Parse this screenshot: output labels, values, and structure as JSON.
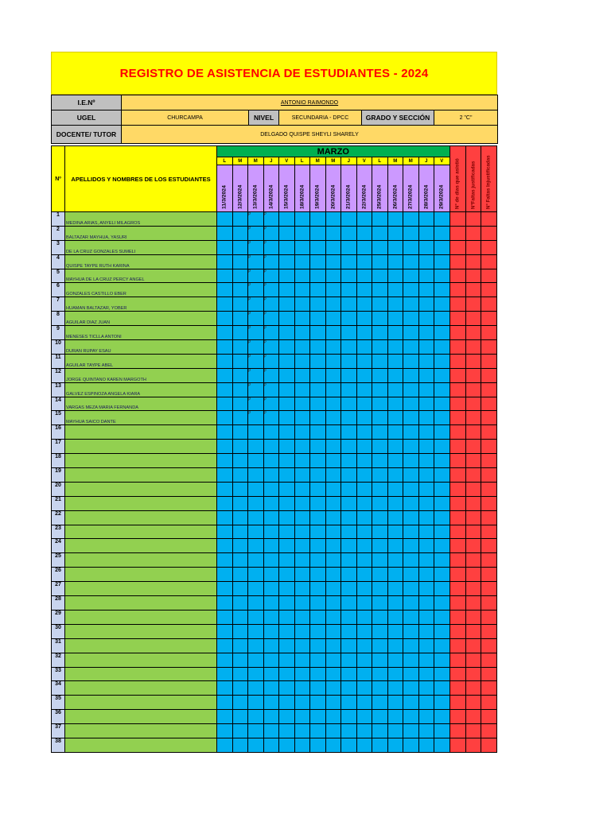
{
  "title": "REGISTRO DE ASISTENCIA DE ESTUDIANTES  - 2024",
  "info": {
    "ie_label": "I.E.Nº",
    "ie_value": "ANTONIO RAIMONDO",
    "ugel_label": "UGEL",
    "ugel_value": "CHURCAMPA",
    "nivel_label": "NIVEL",
    "nivel_value": "SECUNDARIA - DPCC",
    "grado_label": "GRADO Y SECCIÓN",
    "grado_value": "2 \"C\"",
    "docente_label": "DOCENTE/ TUTOR",
    "docente_value": "DELGADO QUISPE SHEYLI SHARELY"
  },
  "table": {
    "num_header": "Nº",
    "name_header": "APELLIDOS Y NOMBRES DE LOS ESTUDIANTES",
    "month": "MARZO",
    "day_letters": [
      "L",
      "M",
      "M",
      "J",
      "V",
      "L",
      "M",
      "M",
      "J",
      "V",
      "L",
      "M",
      "M",
      "J",
      "V"
    ],
    "dates": [
      "11/3/2024",
      "12/3/2024",
      "13/3/2024",
      "14/3/2024",
      "15/3/2024",
      "18/3/2024",
      "19/3/2024",
      "20/3/2024",
      "21/3/2024",
      "22/3/2024",
      "25/3/2024",
      "26/3/2024",
      "27/3/2024",
      "28/3/2024",
      "29/3/2024"
    ],
    "summary_headers": [
      "Nº de dias que asistió",
      "NºFaltas justificadas",
      "Nº Faltas Injustificadas"
    ],
    "students": [
      {
        "n": "1",
        "name": "MEDINA ARIAS, ANYELI MILAGROS",
        "marks": [
          "",
          "",
          "P",
          "P",
          "",
          "",
          "",
          "",
          "",
          "",
          "",
          "",
          "",
          "",
          ""
        ]
      },
      {
        "n": "2",
        "name": "BALTAZAR MAYHUA, YASURI",
        "marks": [
          "",
          "",
          "P",
          "P",
          "",
          "",
          "",
          "",
          "",
          "",
          "",
          "",
          "",
          "",
          ""
        ]
      },
      {
        "n": "3",
        "name": "DE LA CRUZ GONZALES SUMELI",
        "marks": [
          "",
          "",
          "P",
          "P",
          "",
          "",
          "",
          "",
          "",
          "",
          "",
          "",
          "",
          "",
          ""
        ]
      },
      {
        "n": "4",
        "name": "QUISPE TAYPE RUTH KARINA",
        "marks": [
          "",
          "",
          "P",
          "P",
          "",
          "",
          "",
          "",
          "",
          "",
          "",
          "",
          "",
          "",
          ""
        ]
      },
      {
        "n": "5",
        "name": "MAYHUA DE LA CRUZ PERCY ANGEL",
        "marks": [
          "",
          "",
          "P",
          "P",
          "",
          "",
          "",
          "",
          "",
          "",
          "",
          "",
          "",
          "",
          ""
        ]
      },
      {
        "n": "6",
        "name": "GONZALES CASTILLO EBER",
        "marks": [
          "",
          "",
          "P",
          "P",
          "",
          "",
          "",
          "",
          "",
          "",
          "",
          "",
          "",
          "",
          ""
        ]
      },
      {
        "n": "7",
        "name": "HUAMAN BALTAZAR, YOBER",
        "marks": [
          "",
          "",
          "P",
          "P",
          "",
          "",
          "",
          "",
          "",
          "",
          "",
          "",
          "",
          "",
          ""
        ]
      },
      {
        "n": "8",
        "name": "AGUILAR DIAZ JUAN",
        "marks": [
          "",
          "",
          "P",
          "P",
          "",
          "",
          "",
          "",
          "",
          "",
          "",
          "",
          "",
          "",
          ""
        ]
      },
      {
        "n": "9",
        "name": "MENESES TICLLA ANTONI",
        "marks": [
          "",
          "",
          "P",
          "P",
          "",
          "",
          "",
          "",
          "",
          "",
          "",
          "",
          "",
          "",
          ""
        ]
      },
      {
        "n": "10",
        "name": "DURAN RUPAY ESAU",
        "marks": [
          "",
          "",
          "P",
          "P",
          "",
          "",
          "",
          "",
          "",
          "",
          "",
          "",
          "",
          "",
          ""
        ]
      },
      {
        "n": "11",
        "name": "AGUILAR TAYPE ABEL",
        "marks": [
          "",
          "",
          "P",
          "P",
          "",
          "",
          "",
          "",
          "",
          "",
          "",
          "",
          "",
          "",
          ""
        ]
      },
      {
        "n": "12",
        "name": "JORGE QUINTANO KAREN MARGOTH",
        "marks": [
          "",
          "",
          "P",
          "P",
          "",
          "",
          "",
          "",
          "",
          "",
          "",
          "",
          "",
          "",
          ""
        ]
      },
      {
        "n": "13",
        "name": "GALVEZ ESPINOZA ANGELA KIARA",
        "marks": [
          "",
          "",
          "P",
          "P",
          "",
          "",
          "",
          "",
          "",
          "",
          "",
          "",
          "",
          "",
          ""
        ]
      },
      {
        "n": "14",
        "name": "VARGAS MEZA MARIA FERNANDA",
        "marks": [
          "",
          "",
          "P",
          "P",
          "",
          "",
          "",
          "",
          "",
          "",
          "",
          "",
          "",
          "",
          ""
        ]
      },
      {
        "n": "15",
        "name": "MAYHUA SAICO DANTE",
        "marks": [
          "",
          "",
          "P",
          "P",
          "",
          "",
          "",
          "",
          "",
          "",
          "",
          "",
          "",
          "",
          ""
        ]
      },
      {
        "n": "16",
        "name": "",
        "marks": []
      },
      {
        "n": "17",
        "name": "",
        "marks": []
      },
      {
        "n": "18",
        "name": "",
        "marks": []
      },
      {
        "n": "19",
        "name": "",
        "marks": []
      },
      {
        "n": "20",
        "name": "",
        "marks": []
      },
      {
        "n": "21",
        "name": "",
        "marks": []
      },
      {
        "n": "22",
        "name": "",
        "marks": []
      },
      {
        "n": "23",
        "name": "",
        "marks": []
      },
      {
        "n": "24",
        "name": "",
        "marks": []
      },
      {
        "n": "25",
        "name": "",
        "marks": []
      },
      {
        "n": "26",
        "name": "",
        "marks": []
      },
      {
        "n": "27",
        "name": "",
        "marks": []
      },
      {
        "n": "28",
        "name": "",
        "marks": []
      },
      {
        "n": "29",
        "name": "",
        "marks": []
      },
      {
        "n": "30",
        "name": "",
        "marks": []
      },
      {
        "n": "31",
        "name": "",
        "marks": []
      },
      {
        "n": "32",
        "name": "",
        "marks": []
      },
      {
        "n": "33",
        "name": "",
        "marks": []
      },
      {
        "n": "34",
        "name": "",
        "marks": []
      },
      {
        "n": "35",
        "name": "",
        "marks": []
      },
      {
        "n": "36",
        "name": "",
        "marks": []
      },
      {
        "n": "37",
        "name": "",
        "marks": []
      },
      {
        "n": "38",
        "name": "",
        "marks": []
      }
    ]
  }
}
